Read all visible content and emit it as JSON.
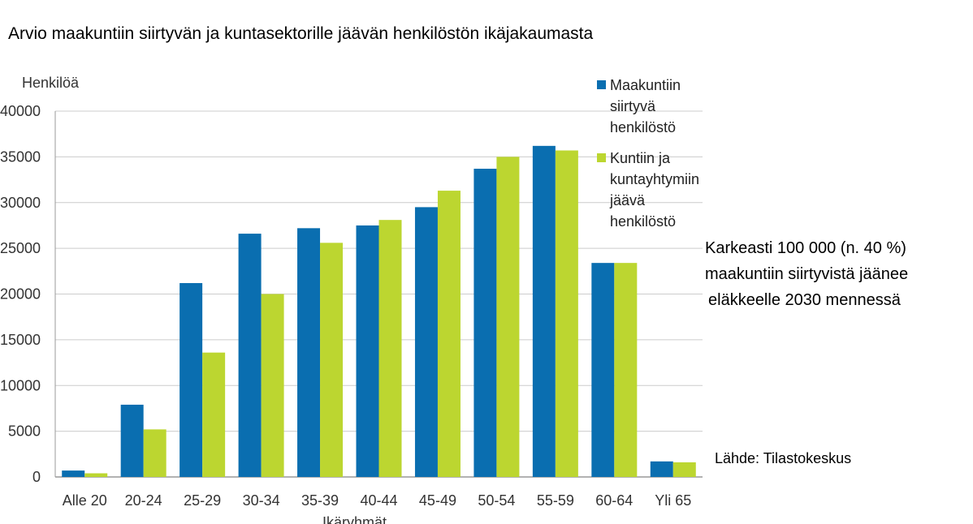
{
  "title": "Arvio maakuntiin siirtyvän ja kuntasektorille jäävän henkilöstön ikäjakaumasta",
  "annotation": {
    "lines": [
      "Karkeasti 100 000 (n. 40 %)",
      "maakuntiin siirtyvistä jäänee",
      "eläkkeelle 2030 mennessä"
    ]
  },
  "source": "Lähde: Tilastokeskus",
  "colors": {
    "series1": "#0a6eb0",
    "series2": "#bcd630",
    "grid": "#cccccc",
    "axis": "#999999"
  },
  "chart_data": {
    "type": "bar",
    "title": "Arvio maakuntiin siirtyvän ja kuntasektorille jäävän henkilöstön ikäjakaumasta",
    "xlabel": "Ikäryhmät",
    "ylabel": "Henkilöä",
    "ylim": [
      0,
      40000
    ],
    "yticks": [
      "0",
      "5000",
      "10000",
      "15000",
      "20000",
      "25000",
      "30000",
      "35000",
      "40000"
    ],
    "ytick_values": [
      0,
      5000,
      10000,
      15000,
      20000,
      25000,
      30000,
      35000,
      40000
    ],
    "grid": true,
    "legend_position": "top-right",
    "categories": [
      "Alle 20",
      "20-24",
      "25-29",
      "30-34",
      "35-39",
      "40-44",
      "45-49",
      "50-54",
      "55-59",
      "60-64",
      "Yli 65"
    ],
    "series": [
      {
        "name": "Maakuntiin siirtyvä henkilöstö",
        "legend_lines": [
          "Maakuntiin",
          "siirtyvä",
          "henkilöstö"
        ],
        "values": [
          700,
          7900,
          21200,
          26600,
          27200,
          27500,
          29500,
          33700,
          36200,
          23400,
          1700
        ]
      },
      {
        "name": "Kuntiin ja kuntayhtymiin jäävä henkilöstö",
        "legend_lines": [
          "Kuntiin ja",
          "kuntayhtymiin",
          "jäävä",
          "henkilöstö"
        ],
        "values": [
          400,
          5200,
          13600,
          20000,
          25600,
          28100,
          31300,
          35000,
          35700,
          23400,
          1600
        ]
      }
    ]
  }
}
